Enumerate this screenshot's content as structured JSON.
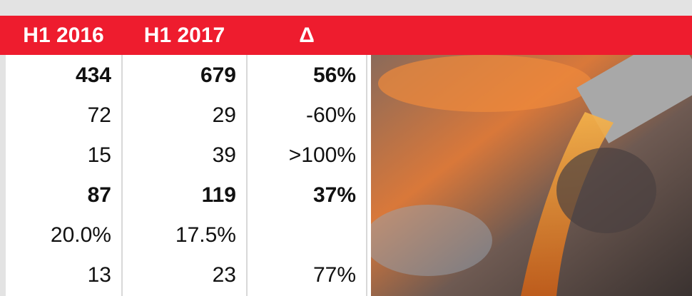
{
  "table": {
    "header": [
      "H1 2016",
      "H1 2017",
      "Δ"
    ],
    "rows": [
      [
        "434",
        "679",
        "56%"
      ],
      [
        "72",
        "29",
        "-60%"
      ],
      [
        "15",
        "39",
        ">100%"
      ],
      [
        "87",
        "119",
        "37%"
      ],
      [
        "20.0%",
        "17.5%",
        null
      ],
      [
        "13",
        "23",
        "77%"
      ]
    ],
    "bold_rows": [
      0,
      3
    ]
  }
}
